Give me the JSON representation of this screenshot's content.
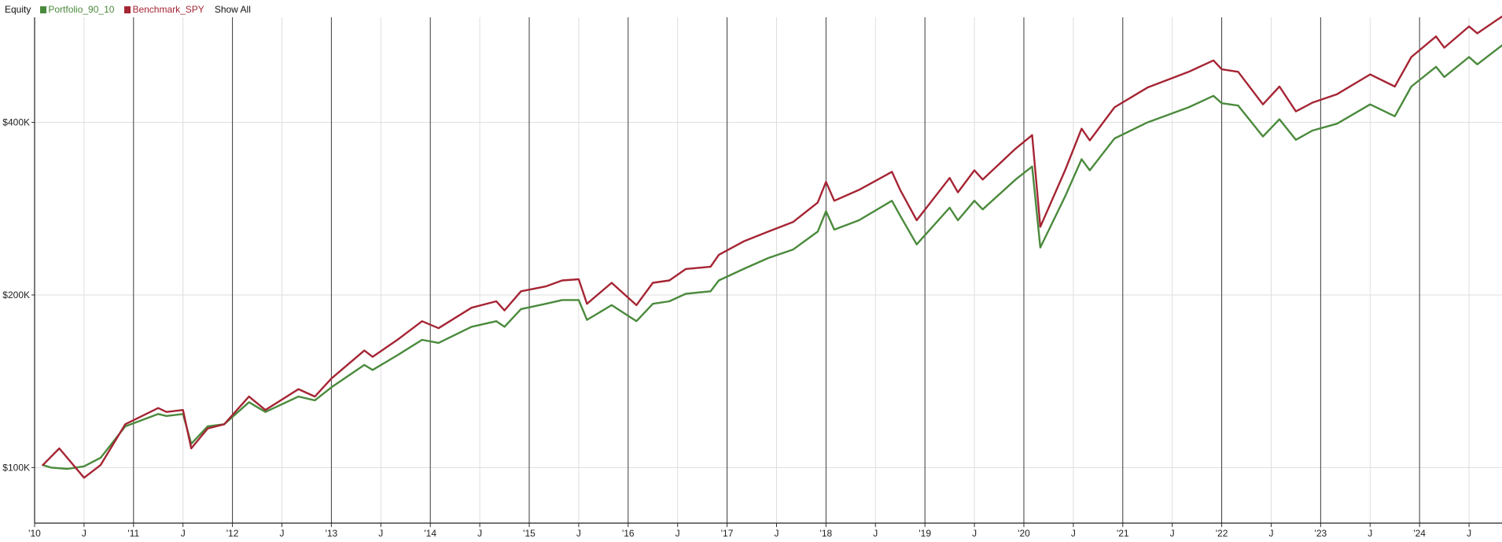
{
  "header": {
    "title": "Equity",
    "show_all_label": "Show All"
  },
  "legend": [
    {
      "name": "Portfolio_90_10",
      "color": "#4a8a3c"
    },
    {
      "name": "Benchmark_SPY",
      "color": "#a52534"
    }
  ],
  "chart_data": {
    "type": "line",
    "title": "Equity",
    "xlabel": "",
    "ylabel": "",
    "xlim": [
      "2010-01",
      "2024-11"
    ],
    "ylim": [
      80000,
      610000
    ],
    "grid": true,
    "legend_position": "top-left",
    "y_ticks": [
      {
        "value": 100000,
        "label": "$100K"
      },
      {
        "value": 200000,
        "label": "$200K"
      },
      {
        "value": 400000,
        "label": "$400K"
      }
    ],
    "x_ticks": [
      {
        "date": "2010-01",
        "label": "'10",
        "major": true
      },
      {
        "date": "2010-07",
        "label": "J",
        "major": false
      },
      {
        "date": "2011-01",
        "label": "'11",
        "major": true
      },
      {
        "date": "2011-07",
        "label": "J",
        "major": false
      },
      {
        "date": "2012-01",
        "label": "'12",
        "major": true
      },
      {
        "date": "2012-07",
        "label": "J",
        "major": false
      },
      {
        "date": "2013-01",
        "label": "'13",
        "major": true
      },
      {
        "date": "2013-07",
        "label": "J",
        "major": false
      },
      {
        "date": "2014-01",
        "label": "'14",
        "major": true
      },
      {
        "date": "2014-07",
        "label": "J",
        "major": false
      },
      {
        "date": "2015-01",
        "label": "'15",
        "major": true
      },
      {
        "date": "2015-07",
        "label": "J",
        "major": false
      },
      {
        "date": "2016-01",
        "label": "'16",
        "major": true
      },
      {
        "date": "2016-07",
        "label": "J",
        "major": false
      },
      {
        "date": "2017-01",
        "label": "'17",
        "major": true
      },
      {
        "date": "2017-07",
        "label": "J",
        "major": false
      },
      {
        "date": "2018-01",
        "label": "'18",
        "major": true
      },
      {
        "date": "2018-07",
        "label": "J",
        "major": false
      },
      {
        "date": "2019-01",
        "label": "'19",
        "major": true
      },
      {
        "date": "2019-07",
        "label": "J",
        "major": false
      },
      {
        "date": "2020-01",
        "label": "'20",
        "major": true
      },
      {
        "date": "2020-07",
        "label": "J",
        "major": false
      },
      {
        "date": "2021-01",
        "label": "'21",
        "major": true
      },
      {
        "date": "2021-07",
        "label": "J",
        "major": false
      },
      {
        "date": "2022-01",
        "label": "'22",
        "major": true
      },
      {
        "date": "2022-07",
        "label": "J",
        "major": false
      },
      {
        "date": "2023-01",
        "label": "'23",
        "major": true
      },
      {
        "date": "2023-07",
        "label": "J",
        "major": false
      },
      {
        "date": "2024-01",
        "label": "'24",
        "major": true
      },
      {
        "date": "2024-07",
        "label": "J",
        "major": false
      }
    ],
    "series": [
      {
        "name": "Portfolio_90_10",
        "color": "#4a8a3c",
        "points": [
          [
            "2010-02",
            101000
          ],
          [
            "2010-03",
            100000
          ],
          [
            "2010-05",
            99500
          ],
          [
            "2010-07",
            100500
          ],
          [
            "2010-09",
            104000
          ],
          [
            "2010-12",
            118000
          ],
          [
            "2011-04",
            124000
          ],
          [
            "2011-05",
            123000
          ],
          [
            "2011-07",
            124000
          ],
          [
            "2011-08",
            110000
          ],
          [
            "2011-10",
            118000
          ],
          [
            "2011-12",
            119000
          ],
          [
            "2012-03",
            130000
          ],
          [
            "2012-05",
            125000
          ],
          [
            "2012-09",
            133000
          ],
          [
            "2012-11",
            131000
          ],
          [
            "2013-01",
            138000
          ],
          [
            "2013-05",
            151000
          ],
          [
            "2013-06",
            148000
          ],
          [
            "2013-09",
            157000
          ],
          [
            "2013-12",
            167000
          ],
          [
            "2014-02",
            165000
          ],
          [
            "2014-06",
            176000
          ],
          [
            "2014-09",
            180000
          ],
          [
            "2014-10",
            176000
          ],
          [
            "2014-12",
            189000
          ],
          [
            "2015-03",
            193000
          ],
          [
            "2015-05",
            196000
          ],
          [
            "2015-07",
            196000
          ],
          [
            "2015-08",
            181000
          ],
          [
            "2015-11",
            192000
          ],
          [
            "2016-02",
            180000
          ],
          [
            "2016-04",
            193000
          ],
          [
            "2016-06",
            195000
          ],
          [
            "2016-08",
            201000
          ],
          [
            "2016-11",
            203000
          ],
          [
            "2016-12",
            212000
          ],
          [
            "2017-03",
            222000
          ],
          [
            "2017-06",
            232000
          ],
          [
            "2017-09",
            240000
          ],
          [
            "2017-12",
            258000
          ],
          [
            "2018-01",
            280000
          ],
          [
            "2018-02",
            260000
          ],
          [
            "2018-05",
            270000
          ],
          [
            "2018-09",
            292000
          ],
          [
            "2018-10",
            275000
          ],
          [
            "2018-12",
            245000
          ],
          [
            "2019-04",
            284000
          ],
          [
            "2019-05",
            270000
          ],
          [
            "2019-07",
            292000
          ],
          [
            "2019-08",
            282000
          ],
          [
            "2019-12",
            318000
          ],
          [
            "2020-02",
            335000
          ],
          [
            "2020-03",
            242000
          ],
          [
            "2020-06",
            297000
          ],
          [
            "2020-08",
            345000
          ],
          [
            "2020-09",
            330000
          ],
          [
            "2020-12",
            375000
          ],
          [
            "2021-04",
            400000
          ],
          [
            "2021-09",
            425000
          ],
          [
            "2021-12",
            445000
          ],
          [
            "2022-01",
            432000
          ],
          [
            "2022-03",
            428000
          ],
          [
            "2022-06",
            378000
          ],
          [
            "2022-08",
            405000
          ],
          [
            "2022-10",
            373000
          ],
          [
            "2022-12",
            387000
          ],
          [
            "2023-03",
            398000
          ],
          [
            "2023-07",
            430000
          ],
          [
            "2023-10",
            410000
          ],
          [
            "2023-12",
            462000
          ],
          [
            "2024-03",
            500000
          ],
          [
            "2024-04",
            480000
          ],
          [
            "2024-07",
            520000
          ],
          [
            "2024-08",
            505000
          ],
          [
            "2024-11",
            545000
          ]
        ]
      },
      {
        "name": "Benchmark_SPY",
        "color": "#a52534",
        "points": [
          [
            "2010-02",
            101000
          ],
          [
            "2010-04",
            108000
          ],
          [
            "2010-07",
            96000
          ],
          [
            "2010-09",
            101000
          ],
          [
            "2010-12",
            119000
          ],
          [
            "2011-04",
            127000
          ],
          [
            "2011-05",
            125000
          ],
          [
            "2011-07",
            126000
          ],
          [
            "2011-08",
            108000
          ],
          [
            "2011-10",
            117000
          ],
          [
            "2011-12",
            119000
          ],
          [
            "2012-03",
            133000
          ],
          [
            "2012-05",
            126000
          ],
          [
            "2012-09",
            137000
          ],
          [
            "2012-11",
            133000
          ],
          [
            "2013-01",
            143000
          ],
          [
            "2013-05",
            160000
          ],
          [
            "2013-06",
            156000
          ],
          [
            "2013-09",
            167000
          ],
          [
            "2013-12",
            180000
          ],
          [
            "2014-02",
            175000
          ],
          [
            "2014-06",
            190000
          ],
          [
            "2014-09",
            195000
          ],
          [
            "2014-10",
            188000
          ],
          [
            "2014-12",
            203000
          ],
          [
            "2015-03",
            207000
          ],
          [
            "2015-05",
            212000
          ],
          [
            "2015-07",
            213000
          ],
          [
            "2015-08",
            193000
          ],
          [
            "2015-11",
            210000
          ],
          [
            "2016-02",
            192000
          ],
          [
            "2016-04",
            210000
          ],
          [
            "2016-06",
            212000
          ],
          [
            "2016-08",
            222000
          ],
          [
            "2016-11",
            224000
          ],
          [
            "2016-12",
            235000
          ],
          [
            "2017-03",
            248000
          ],
          [
            "2017-06",
            258000
          ],
          [
            "2017-09",
            268000
          ],
          [
            "2017-12",
            290000
          ],
          [
            "2018-01",
            315000
          ],
          [
            "2018-02",
            292000
          ],
          [
            "2018-05",
            305000
          ],
          [
            "2018-09",
            328000
          ],
          [
            "2018-10",
            305000
          ],
          [
            "2018-12",
            270000
          ],
          [
            "2019-04",
            320000
          ],
          [
            "2019-05",
            302000
          ],
          [
            "2019-07",
            330000
          ],
          [
            "2019-08",
            318000
          ],
          [
            "2019-12",
            360000
          ],
          [
            "2020-02",
            380000
          ],
          [
            "2020-03",
            263000
          ],
          [
            "2020-06",
            330000
          ],
          [
            "2020-08",
            390000
          ],
          [
            "2020-09",
            372000
          ],
          [
            "2020-12",
            425000
          ],
          [
            "2021-04",
            460000
          ],
          [
            "2021-09",
            490000
          ],
          [
            "2021-12",
            513000
          ],
          [
            "2022-01",
            495000
          ],
          [
            "2022-03",
            490000
          ],
          [
            "2022-06",
            430000
          ],
          [
            "2022-08",
            462000
          ],
          [
            "2022-10",
            418000
          ],
          [
            "2022-12",
            433000
          ],
          [
            "2023-03",
            448000
          ],
          [
            "2023-07",
            485000
          ],
          [
            "2023-10",
            462000
          ],
          [
            "2023-12",
            520000
          ],
          [
            "2024-03",
            565000
          ],
          [
            "2024-04",
            540000
          ],
          [
            "2024-07",
            588000
          ],
          [
            "2024-08",
            572000
          ],
          [
            "2024-11",
            612000
          ]
        ]
      }
    ]
  }
}
